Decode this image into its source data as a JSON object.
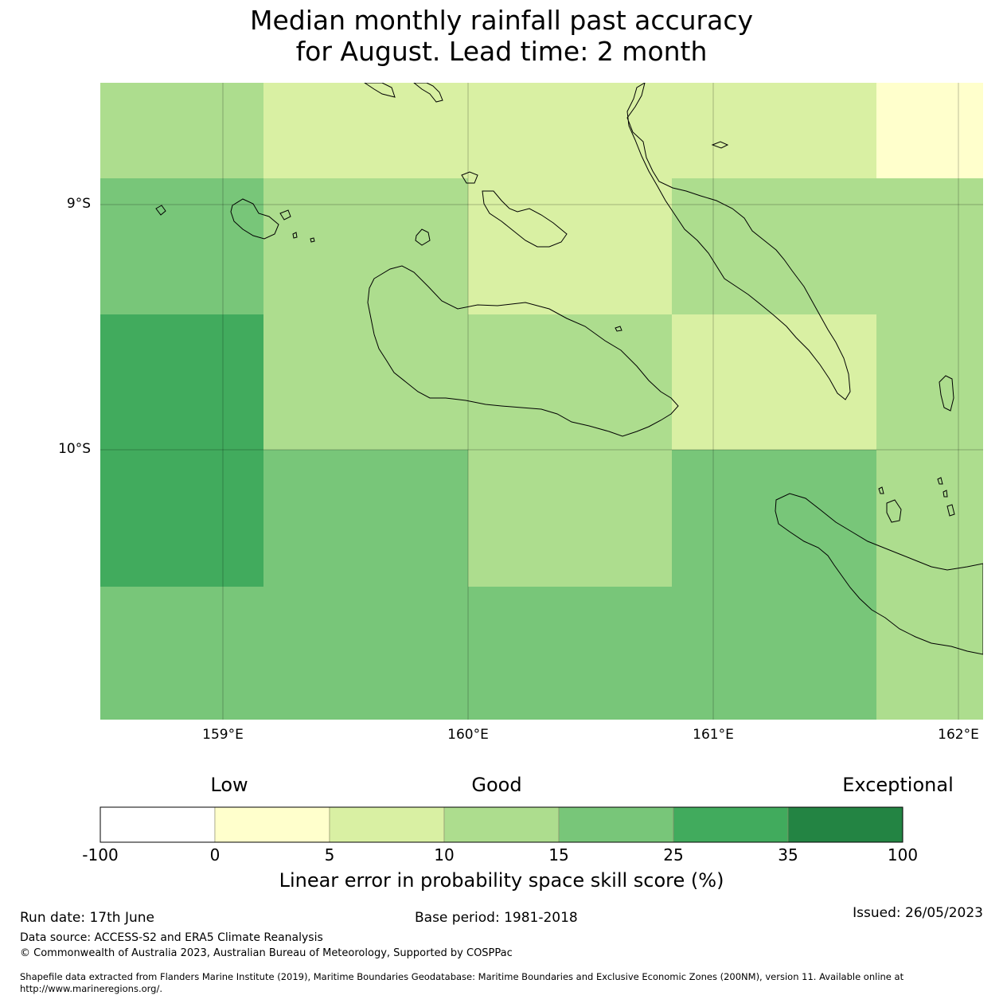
{
  "title": {
    "line1": "Median monthly rainfall past accuracy",
    "line2": "for August. Lead time: 2 month"
  },
  "map": {
    "lon_labels": [
      "159°E",
      "160°E",
      "161°E",
      "162°E"
    ],
    "lat_labels": [
      "9°S",
      "10°S"
    ],
    "grid_cells": [
      {
        "row": 0,
        "col": 0,
        "score": 12
      },
      {
        "row": 0,
        "col": 1,
        "score": 7
      },
      {
        "row": 0,
        "col": 2,
        "score": 7
      },
      {
        "row": 0,
        "col": 3,
        "score": 7
      },
      {
        "row": 0,
        "col": 4,
        "score": 2
      },
      {
        "row": 1,
        "col": 0,
        "score": 20
      },
      {
        "row": 1,
        "col": 1,
        "score": 12
      },
      {
        "row": 1,
        "col": 2,
        "score": 7
      },
      {
        "row": 1,
        "col": 3,
        "score": 12
      },
      {
        "row": 1,
        "col": 4,
        "score": 12
      },
      {
        "row": 2,
        "col": 0,
        "score": 30
      },
      {
        "row": 2,
        "col": 1,
        "score": 12
      },
      {
        "row": 2,
        "col": 2,
        "score": 12
      },
      {
        "row": 2,
        "col": 3,
        "score": 7
      },
      {
        "row": 2,
        "col": 4,
        "score": 12
      },
      {
        "row": 3,
        "col": 0,
        "score": 30
      },
      {
        "row": 3,
        "col": 1,
        "score": 20
      },
      {
        "row": 3,
        "col": 2,
        "score": 12
      },
      {
        "row": 3,
        "col": 3,
        "score": 20
      },
      {
        "row": 3,
        "col": 4,
        "score": 12
      },
      {
        "row": 4,
        "col": 0,
        "score": 20
      },
      {
        "row": 4,
        "col": 1,
        "score": 20
      },
      {
        "row": 4,
        "col": 2,
        "score": 20
      },
      {
        "row": 4,
        "col": 3,
        "score": 20
      },
      {
        "row": 4,
        "col": 4,
        "score": 12
      }
    ]
  },
  "colorbar": {
    "category_labels": [
      "Low",
      "Good",
      "Exceptional"
    ],
    "bins": [
      {
        "from": "-100",
        "to": "0",
        "color": "#ffffff"
      },
      {
        "from": "0",
        "to": "5",
        "color": "#ffffcc"
      },
      {
        "from": "5",
        "to": "10",
        "color": "#d9f0a3"
      },
      {
        "from": "10",
        "to": "15",
        "color": "#addd8e"
      },
      {
        "from": "15",
        "to": "25",
        "color": "#78c679"
      },
      {
        "from": "25",
        "to": "35",
        "color": "#41ab5d"
      },
      {
        "from": "35",
        "to": "100",
        "color": "#238443"
      }
    ],
    "tick_labels": [
      "-100",
      "0",
      "5",
      "10",
      "15",
      "25",
      "35",
      "100"
    ],
    "axis_label": "Linear error in probability space skill score (%)"
  },
  "footer": {
    "run_date": "Run date: 17th June",
    "base_period": "Base period: 1981-2018",
    "issued": "Issued: 26/05/2023",
    "data_source": "Data source: ACCESS-S2 and ERA5 Climate Reanalysis",
    "copyright": "© Commonwealth of Australia 2023, Australian Bureau of Meteorology, Supported by COSPPac",
    "shapefile_line1": "Shapefile data extracted from Flanders Marine Institute (2019), Maritime Boundaries Geodatabase: Maritime Boundaries and Exclusive Economic Zones (200NM), version 11. Available online at",
    "shapefile_line2": "http://www.marineregions.org/."
  }
}
